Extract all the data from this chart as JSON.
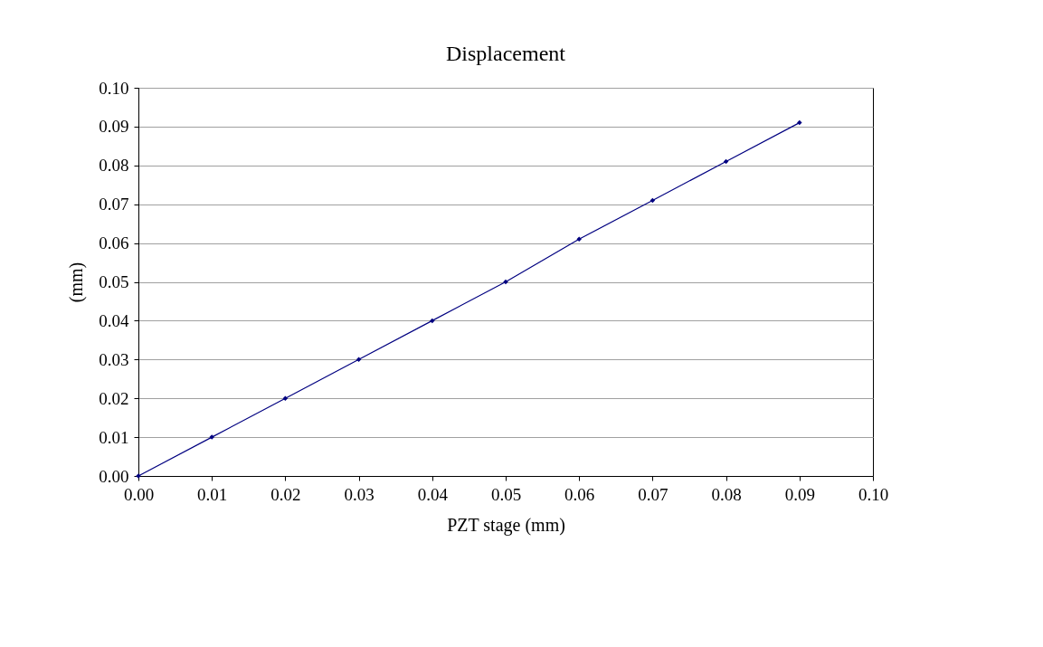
{
  "chart_data": {
    "type": "line",
    "title": "Displacement",
    "xlabel": "PZT stage (mm)",
    "ylabel": "(mm)",
    "x": [
      0.0,
      0.01,
      0.02,
      0.03,
      0.04,
      0.05,
      0.06,
      0.07,
      0.08,
      0.09
    ],
    "series": [
      {
        "color": "#000080",
        "values": [
          0.0,
          0.01,
          0.02,
          0.03,
          0.04,
          0.05,
          0.061,
          0.071,
          0.081,
          0.091
        ]
      }
    ],
    "xlim": [
      0,
      0.1
    ],
    "xticks": [
      {
        "value": 0,
        "label": "0.00"
      },
      0.01,
      0.02,
      0.03,
      0.04,
      0.05,
      0.06,
      0.07,
      0.08,
      0.09,
      {
        "value": 0.1,
        "label": "0.10"
      }
    ],
    "ylim": [
      0,
      0.1
    ],
    "yticks": [
      {
        "value": 0,
        "label": "0.00"
      },
      0.01,
      0.02,
      0.03,
      0.04,
      0.05,
      0.06,
      0.07,
      0.08,
      0.09,
      {
        "value": 0.1,
        "label": "0.10"
      }
    ],
    "grid": "y",
    "marker": "diamond",
    "line_style": "solid"
  }
}
